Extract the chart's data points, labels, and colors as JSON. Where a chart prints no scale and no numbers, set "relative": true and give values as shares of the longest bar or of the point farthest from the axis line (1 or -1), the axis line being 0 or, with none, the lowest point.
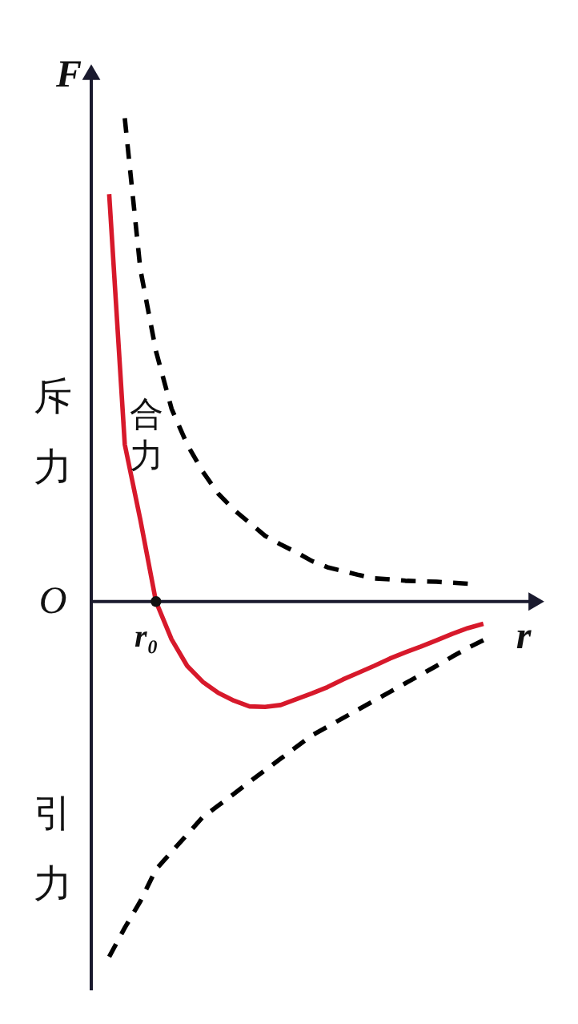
{
  "chart_data": {
    "type": "line",
    "relative": true,
    "xlabel": "r",
    "ylabel": "F",
    "annotations": [
      "O",
      "r₀",
      "斥力",
      "引力"
    ],
    "categories": [
      null,
      null,
      null,
      null,
      null,
      null,
      null,
      null,
      null,
      null,
      null,
      null,
      null,
      null,
      null,
      null,
      null,
      null,
      null,
      null,
      null,
      null,
      null,
      null,
      null
    ],
    "series": [
      {
        "color": "#000000",
        "line_style": "dashed",
        "values": [
          null,
          1,
          0.687,
          0.518,
          0.399,
          0.325,
          0.269,
          0.223,
          0.19,
          0.163,
          0.136,
          0.118,
          0.102,
          0.084,
          0.071,
          0.063,
          0.055,
          0.048,
          0.046,
          0.043,
          0.042,
          0.041,
          0.039,
          0.037,
          null
        ]
      },
      {
        "name": "合力",
        "color": "#d7192b",
        "line_style": "solid",
        "values": [
          0.843,
          0.325,
          0.169,
          0,
          -0.078,
          -0.133,
          -0.166,
          -0.189,
          -0.205,
          -0.217,
          -0.218,
          -0.214,
          -0.202,
          -0.19,
          -0.177,
          -0.161,
          -0.147,
          -0.133,
          -0.118,
          -0.105,
          -0.093,
          -0.08,
          -0.067,
          -0.055,
          -0.046
        ]
      },
      {
        "color": "#000000",
        "line_style": "dashed",
        "values": [
          -0.735,
          -0.675,
          -0.62,
          -0.554,
          -0.518,
          -0.482,
          -0.446,
          -0.422,
          -0.398,
          -0.373,
          -0.349,
          -0.325,
          -0.301,
          -0.277,
          -0.259,
          -0.241,
          -0.223,
          -0.205,
          -0.187,
          -0.169,
          -0.151,
          -0.133,
          -0.114,
          -0.096,
          -0.08
        ]
      }
    ]
  }
}
